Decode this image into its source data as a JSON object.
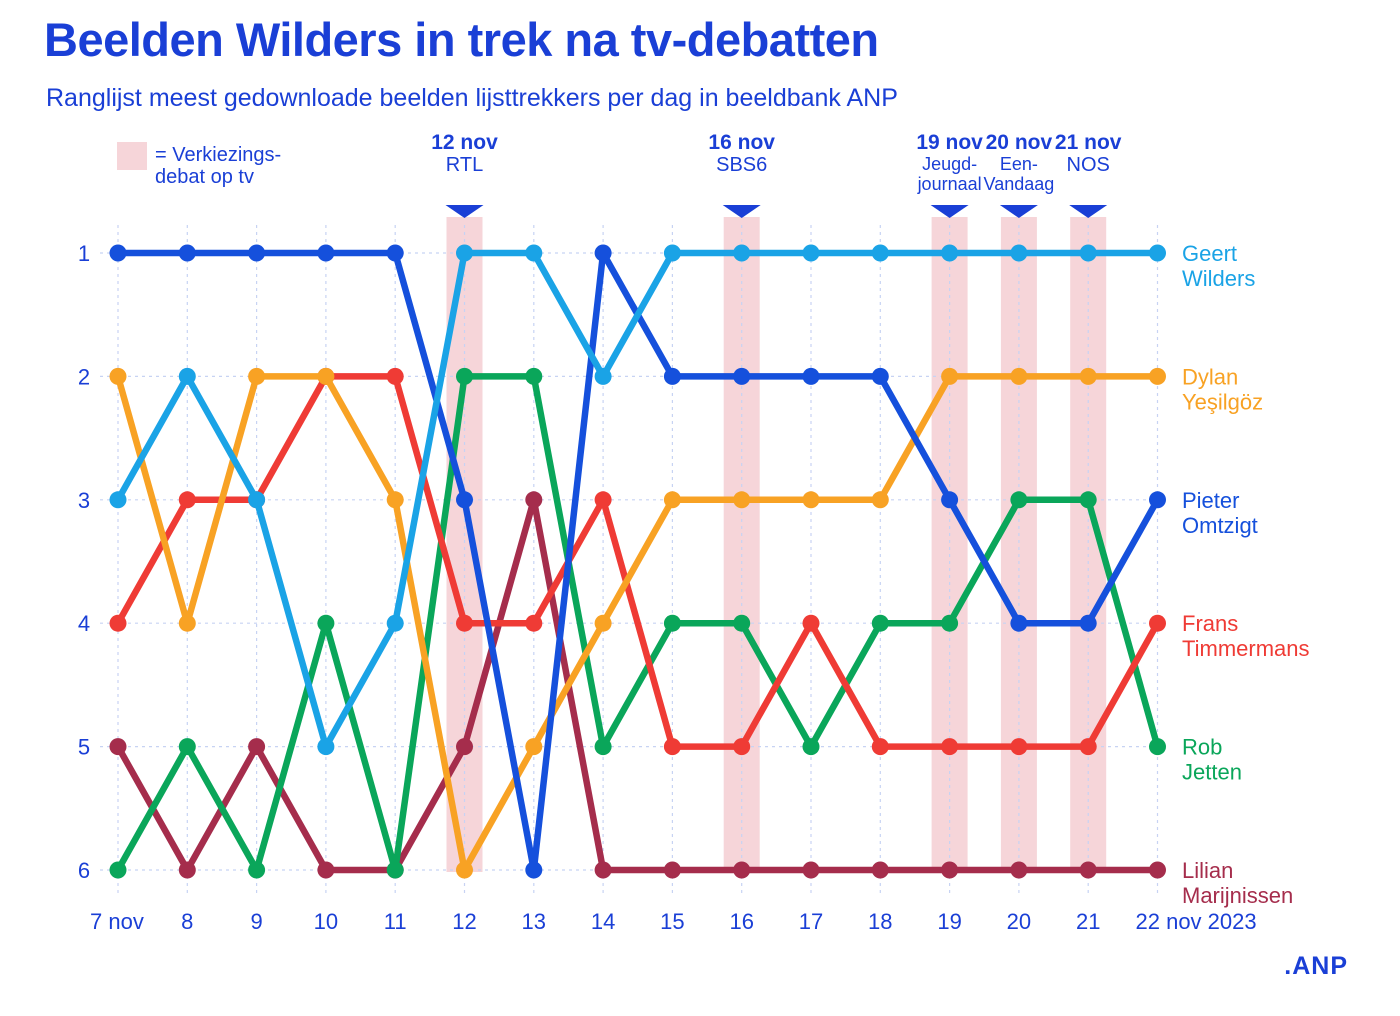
{
  "title": "Beelden Wilders in trek na tv-debatten",
  "subtitle": "Ranglijst meest gedownloade beelden lijsttrekkers per dag in beeldbank ANP",
  "legend": {
    "text": "= Verkiezings-debat op tv"
  },
  "brand": ".ANP",
  "colors": {
    "accent": "#1a3fd6",
    "band": "#f6d5d9",
    "grid": "#c7d3f3"
  },
  "chart_data": {
    "type": "line",
    "title": "Beelden Wilders in trek na tv-debatten",
    "subtitle": "Ranglijst meest gedownloade beelden lijsttrekkers per dag in beeldbank ANP",
    "xlabel": "",
    "ylabel": "",
    "x": [
      7,
      8,
      9,
      10,
      11,
      12,
      13,
      14,
      15,
      16,
      17,
      18,
      19,
      20,
      21,
      22
    ],
    "x_tick_labels": [
      "7 nov",
      "8",
      "9",
      "10",
      "11",
      "12",
      "13",
      "14",
      "15",
      "16",
      "17",
      "18",
      "19",
      "20",
      "21",
      "22 nov 2023"
    ],
    "y_tick_labels": [
      "1",
      "2",
      "3",
      "4",
      "5",
      "6"
    ],
    "ylim": [
      1,
      6
    ],
    "y_inverted": true,
    "debates": [
      {
        "day": 12,
        "date": "12 nov",
        "channel": "RTL"
      },
      {
        "day": 16,
        "date": "16 nov",
        "channel": "SBS6"
      },
      {
        "day": 19,
        "date": "19 nov",
        "channel": "Jeugd-journaal"
      },
      {
        "day": 20,
        "date": "20 nov",
        "channel": "Een-Vandaag"
      },
      {
        "day": 21,
        "date": "21 nov",
        "channel": "NOS"
      }
    ],
    "series": [
      {
        "name": "Lilian Marijnissen",
        "label_lines": [
          "Lilian",
          "Marijnissen"
        ],
        "color": "#a52d4c",
        "values": [
          5,
          6,
          5,
          6,
          6,
          5,
          3,
          6,
          6,
          6,
          6,
          6,
          6,
          6,
          6,
          6
        ]
      },
      {
        "name": "Rob Jetten",
        "label_lines": [
          "Rob",
          "Jetten"
        ],
        "color": "#0aa65a",
        "values": [
          6,
          5,
          6,
          4,
          6,
          2,
          2,
          5,
          4,
          4,
          5,
          4,
          4,
          3,
          3,
          5
        ]
      },
      {
        "name": "Frans Timmermans",
        "label_lines": [
          "Frans",
          "Timmermans"
        ],
        "color": "#ef3b35",
        "values": [
          4,
          3,
          3,
          2,
          2,
          4,
          4,
          3,
          5,
          5,
          4,
          5,
          5,
          5,
          5,
          4
        ]
      },
      {
        "name": "Dylan Yeşilgöz",
        "label_lines": [
          "Dylan",
          "Yeşilgöz"
        ],
        "color": "#f8a224",
        "values": [
          2,
          4,
          2,
          2,
          3,
          6,
          5,
          4,
          3,
          3,
          3,
          3,
          2,
          2,
          2,
          2
        ]
      },
      {
        "name": "Pieter Omtzigt",
        "label_lines": [
          "Pieter",
          "Omtzigt"
        ],
        "color": "#1550dc",
        "values": [
          1,
          1,
          1,
          1,
          1,
          3,
          6,
          1,
          2,
          2,
          2,
          2,
          3,
          4,
          4,
          3
        ]
      },
      {
        "name": "Geert Wilders",
        "label_lines": [
          "Geert",
          "Wilders"
        ],
        "color": "#1aa3e6",
        "values": [
          3,
          2,
          3,
          5,
          4,
          1,
          1,
          2,
          1,
          1,
          1,
          1,
          1,
          1,
          1,
          1
        ]
      }
    ]
  }
}
